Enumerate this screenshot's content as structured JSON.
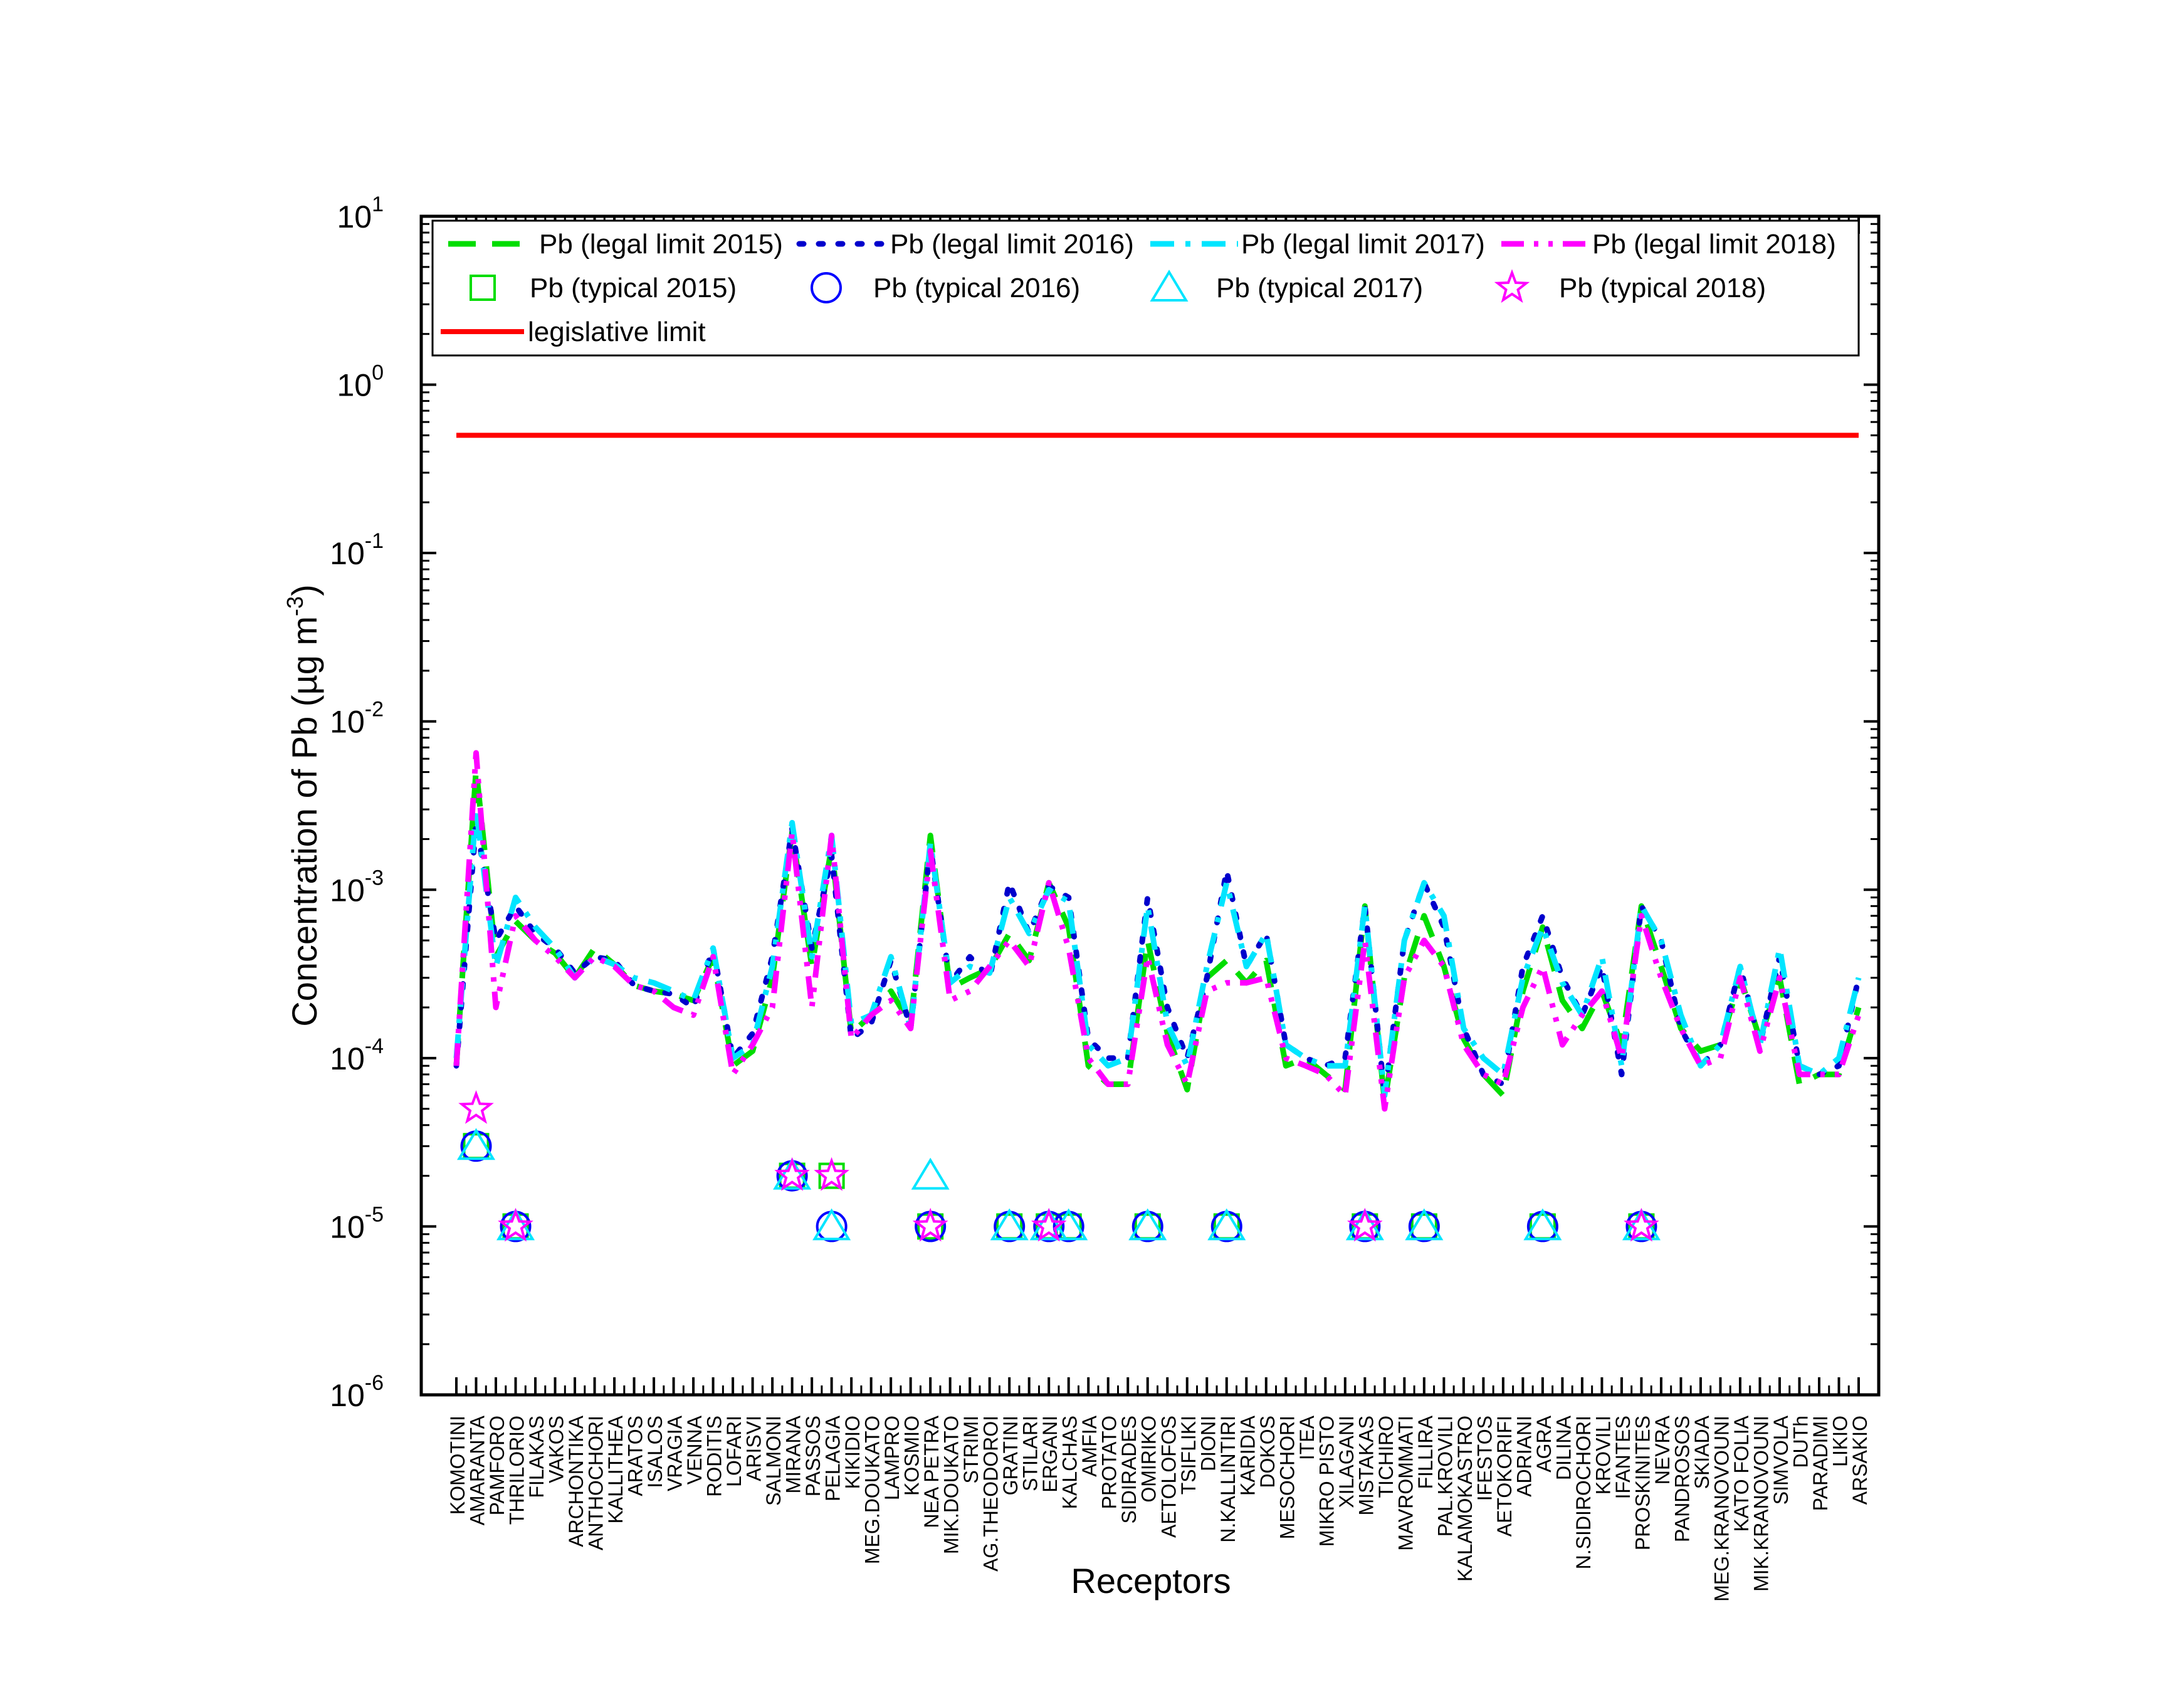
{
  "chart_data": {
    "type": "line",
    "title": "",
    "xlabel": "Receptors",
    "ylabel": "Concentration of Pb (µg m",
    "ylabel_sup": "-3",
    "ylabel_close": ")",
    "yscale": "log",
    "ylim": [
      1e-06,
      10
    ],
    "yticks": [
      {
        "base": "10",
        "exp": "-6",
        "value": 1e-06
      },
      {
        "base": "10",
        "exp": "-5",
        "value": 1e-05
      },
      {
        "base": "10",
        "exp": "-4",
        "value": 0.0001
      },
      {
        "base": "10",
        "exp": "-3",
        "value": 0.001
      },
      {
        "base": "10",
        "exp": "-2",
        "value": 0.01
      },
      {
        "base": "10",
        "exp": "-1",
        "value": 0.1
      },
      {
        "base": "10",
        "exp": "0",
        "value": 1
      },
      {
        "base": "10",
        "exp": "1",
        "value": 10
      }
    ],
    "categories": [
      "KOMOTINI",
      "AMARANTA",
      "PAMFORO",
      "THRILORIO",
      "FILAKAS",
      "VAKOS",
      "ARCHONTIKA",
      "ANTHOCHORI",
      "KALLITHEA",
      "ARATOS",
      "ISALOS",
      "VRAGIA",
      "VENNA",
      "RODITIS",
      "LOFARI",
      "ARISVI",
      "SALMONI",
      "MIRANA",
      "PASSOS",
      "PELAGIA",
      "KIKIDIO",
      "MEG.DOUKATO",
      "LAMPRO",
      "KOSMIO",
      "NEA PETRA",
      "MIK.DOUKATO",
      "STRIMI",
      "AG.THEODOROI",
      "GRATINI",
      "STILARI",
      "ERGANI",
      "KALCHAS",
      "AMFIA",
      "PROTATO",
      "SIDIRADES",
      "OMIRIKO",
      "AETOLOFOS",
      "TSIFLIKI",
      "DIONI",
      "N.KALLINTIRI",
      "KARIDIA",
      "DOKOS",
      "MESOCHORI",
      "ITEA",
      "MIKRO PISTO",
      "XILAGANI",
      "MISTAKAS",
      "TICHIRO",
      "MAVROMMATI",
      "FILLIRA",
      "PAL.KROVILI",
      "KALAMOKASTRO",
      "IFESTOS",
      "AETOKORIFI",
      "ADRIANI",
      "AGRA",
      "DILINA",
      "N.SIDIROCHORI",
      "KROVILI",
      "IFANTES",
      "PROSKINITES",
      "NEVRA",
      "PANDROSOS",
      "SKIADA",
      "MEG.KRANOVOUNI",
      "KATO FOLIA",
      "MIK.KRANOVOUNI",
      "SIMVOLA",
      "DUTh",
      "PARADIMI",
      "LIKIO",
      "ARSAKIO"
    ],
    "series": [
      {
        "name": "Pb (legal limit 2015)",
        "color": "#00dd00",
        "style": "dash",
        "values": [
          9e-05,
          0.0052,
          0.0004,
          0.00065,
          0.0005,
          0.00042,
          0.0003,
          0.00045,
          0.00036,
          0.00027,
          0.00025,
          0.00024,
          0.00022,
          0.0004,
          9e-05,
          0.00011,
          0.0003,
          0.0022,
          0.00035,
          0.0018,
          0.00014,
          0.00018,
          0.00025,
          0.00016,
          0.0021,
          0.00026,
          0.0003,
          0.00034,
          0.00055,
          0.00038,
          0.0011,
          0.0006,
          9e-05,
          7e-05,
          7e-05,
          0.0005,
          0.00014,
          6.5e-05,
          0.0003,
          0.00038,
          0.00028,
          0.00038,
          9e-05,
          0.0001,
          8e-05,
          6.5e-05,
          0.0008,
          5.5e-05,
          0.0003,
          0.0007,
          0.00035,
          0.00013,
          8e-05,
          6e-05,
          0.00025,
          0.0006,
          0.00022,
          0.00015,
          0.00025,
          0.00012,
          0.0008,
          0.00035,
          0.00015,
          0.00011,
          0.00012,
          0.0003,
          0.00013,
          0.0003,
          7e-05,
          8e-05,
          8e-05,
          0.0002
        ]
      },
      {
        "name": "Pb (legal limit 2016)",
        "color": "#0000cc",
        "style": "dot",
        "values": [
          9e-05,
          0.0025,
          0.0005,
          0.0008,
          0.00055,
          0.00045,
          0.00032,
          0.0004,
          0.00038,
          0.00027,
          0.00025,
          0.00024,
          0.0002,
          0.00045,
          0.0001,
          0.00014,
          0.0004,
          0.0023,
          0.00045,
          0.0016,
          0.00013,
          0.00016,
          0.00038,
          0.00015,
          0.0018,
          0.00028,
          0.0004,
          0.0003,
          0.0011,
          0.00055,
          0.00105,
          0.0009,
          0.00013,
          0.0001,
          0.0001,
          0.0009,
          0.0002,
          0.0001,
          0.0003,
          0.0013,
          0.00035,
          0.00055,
          0.00012,
          0.0001,
          9e-05,
          0.0001,
          0.0008,
          6e-05,
          0.0005,
          0.0011,
          0.0006,
          0.00015,
          8e-05,
          7e-05,
          0.00035,
          0.0007,
          0.0003,
          0.00018,
          0.00035,
          8e-05,
          0.0008,
          0.0005,
          0.00015,
          9e-05,
          0.00012,
          0.00035,
          0.00012,
          0.0004,
          9e-05,
          8e-05,
          9e-05,
          0.0003
        ]
      },
      {
        "name": "Pb (legal limit 2017)",
        "color": "#00e5ff",
        "style": "dashdot",
        "values": [
          0.0001,
          0.003,
          0.00035,
          0.0009,
          0.0006,
          0.00045,
          0.0003,
          0.0004,
          0.00036,
          0.0003,
          0.00028,
          0.00025,
          0.00022,
          0.00045,
          0.0001,
          0.00012,
          0.00035,
          0.0025,
          0.0004,
          0.0021,
          0.00016,
          0.00018,
          0.0004,
          0.00015,
          0.0019,
          0.00028,
          0.00035,
          0.00032,
          0.0009,
          0.00055,
          0.001,
          0.00085,
          0.00012,
          9e-05,
          0.0001,
          0.0008,
          0.00016,
          9e-05,
          0.00035,
          0.0011,
          0.00035,
          0.00055,
          0.00012,
          0.0001,
          9e-05,
          9e-05,
          0.0008,
          6e-05,
          0.0005,
          0.0011,
          0.0007,
          0.00015,
          0.0001,
          8e-05,
          0.0003,
          0.0006,
          0.00028,
          0.00018,
          0.0004,
          9e-05,
          0.0008,
          0.0005,
          0.00018,
          9e-05,
          0.00012,
          0.00035,
          0.00012,
          0.00045,
          9e-05,
          8e-05,
          0.0001,
          0.0003
        ]
      },
      {
        "name": "Pb (legal limit 2018)",
        "color": "#ff00ff",
        "style": "dashdotdot",
        "values": [
          9e-05,
          0.0065,
          0.0002,
          0.0007,
          0.0005,
          0.0004,
          0.0003,
          0.0004,
          0.00035,
          0.00027,
          0.00025,
          0.0002,
          0.00018,
          0.0004,
          8e-05,
          0.00012,
          0.0002,
          0.0022,
          0.0002,
          0.0021,
          0.00013,
          0.00018,
          0.00022,
          0.00015,
          0.0017,
          0.00022,
          0.00025,
          0.00035,
          0.0005,
          0.00035,
          0.0011,
          0.00045,
          0.0001,
          7e-05,
          7e-05,
          0.0004,
          0.00012,
          7e-05,
          0.00025,
          0.00028,
          0.00028,
          0.0003,
          0.0001,
          9e-05,
          8e-05,
          6e-05,
          0.0005,
          5e-05,
          0.0003,
          0.0005,
          0.00035,
          0.00012,
          8e-05,
          7e-05,
          0.0002,
          0.00035,
          0.00012,
          0.00018,
          0.00025,
          0.0001,
          0.0007,
          0.0003,
          0.00015,
          9e-05,
          0.0001,
          0.0003,
          0.00011,
          0.0003,
          8e-05,
          8e-05,
          8e-05,
          0.00018
        ]
      }
    ],
    "markers": [
      {
        "name": "Pb (typical 2015)",
        "color": "#00dd00",
        "shape": "square",
        "points": [
          [
            "AMARANTA",
            3e-05
          ],
          [
            "THRILORIO",
            1e-05
          ],
          [
            "MIRANA",
            2e-05
          ],
          [
            "PELAGIA",
            2e-05
          ],
          [
            "NEA PETRA",
            1e-05
          ],
          [
            "GRATINI",
            1e-05
          ],
          [
            "ERGANI",
            1e-05
          ],
          [
            "KALCHAS",
            1e-05
          ],
          [
            "OMIRIKO",
            1e-05
          ],
          [
            "N.KALLINTIRI",
            1e-05
          ],
          [
            "MISTAKAS",
            1e-05
          ],
          [
            "FILLIRA",
            1e-05
          ],
          [
            "AGRA",
            1e-05
          ],
          [
            "PROSKINITES",
            1e-05
          ]
        ]
      },
      {
        "name": "Pb (typical 2016)",
        "color": "#0000ff",
        "shape": "circle",
        "points": [
          [
            "AMARANTA",
            3e-05
          ],
          [
            "THRILORIO",
            1e-05
          ],
          [
            "MIRANA",
            2e-05
          ],
          [
            "PELAGIA",
            1e-05
          ],
          [
            "NEA PETRA",
            1e-05
          ],
          [
            "GRATINI",
            1e-05
          ],
          [
            "ERGANI",
            1e-05
          ],
          [
            "KALCHAS",
            1e-05
          ],
          [
            "OMIRIKO",
            1e-05
          ],
          [
            "N.KALLINTIRI",
            1e-05
          ],
          [
            "MISTAKAS",
            1e-05
          ],
          [
            "FILLIRA",
            1e-05
          ],
          [
            "AGRA",
            1e-05
          ],
          [
            "PROSKINITES",
            1e-05
          ]
        ]
      },
      {
        "name": "Pb (typical 2017)",
        "color": "#00e5ff",
        "shape": "triangle",
        "points": [
          [
            "AMARANTA",
            3e-05
          ],
          [
            "THRILORIO",
            1e-05
          ],
          [
            "MIRANA",
            2e-05
          ],
          [
            "PELAGIA",
            1e-05
          ],
          [
            "NEA PETRA",
            2e-05
          ],
          [
            "GRATINI",
            1e-05
          ],
          [
            "ERGANI",
            1e-05
          ],
          [
            "KALCHAS",
            1e-05
          ],
          [
            "OMIRIKO",
            1e-05
          ],
          [
            "N.KALLINTIRI",
            1e-05
          ],
          [
            "MISTAKAS",
            1e-05
          ],
          [
            "FILLIRA",
            1e-05
          ],
          [
            "AGRA",
            1e-05
          ],
          [
            "PROSKINITES",
            1e-05
          ]
        ]
      },
      {
        "name": "Pb (typical 2018)",
        "color": "#ff00ff",
        "shape": "star",
        "points": [
          [
            "AMARANTA",
            5e-05
          ],
          [
            "THRILORIO",
            1e-05
          ],
          [
            "MIRANA",
            2e-05
          ],
          [
            "PELAGIA",
            2e-05
          ],
          [
            "NEA PETRA",
            1e-05
          ],
          [
            "ERGANI",
            1e-05
          ],
          [
            "MISTAKAS",
            1e-05
          ],
          [
            "PROSKINITES",
            1e-05
          ]
        ]
      }
    ],
    "limit": {
      "name": "legislative limit",
      "value": 0.5,
      "color": "#ff0000"
    },
    "legend_placement": "top"
  }
}
